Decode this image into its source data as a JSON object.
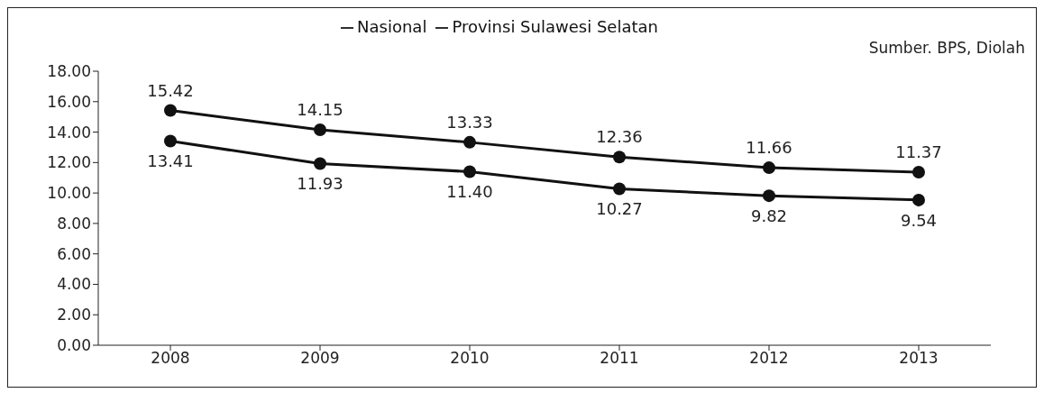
{
  "chart_data": {
    "type": "line",
    "categories": [
      "2008",
      "2009",
      "2010",
      "2011",
      "2012",
      "2013"
    ],
    "series": [
      {
        "name": "Nasional",
        "color": "#111111",
        "values": [
          15.42,
          14.15,
          13.33,
          12.36,
          11.66,
          11.37
        ],
        "value_labels": [
          "15.42",
          "14.15",
          "13.33",
          "12.36",
          "11.66",
          "11.37"
        ]
      },
      {
        "name": "Provinsi Sulawesi Selatan",
        "color": "#111111",
        "values": [
          13.41,
          11.93,
          11.4,
          10.27,
          9.82,
          9.54
        ],
        "value_labels": [
          "13.41",
          "11.93",
          "11.40",
          "10.27",
          "9.82",
          "9.54"
        ]
      }
    ],
    "ylim": [
      0,
      18
    ],
    "yticks": [
      {
        "value": 0,
        "label": "0.00"
      },
      {
        "value": 2,
        "label": "2.00"
      },
      {
        "value": 4,
        "label": "4.00"
      },
      {
        "value": 6,
        "label": "6.00"
      },
      {
        "value": 8,
        "label": "8.00"
      },
      {
        "value": 10,
        "label": "10.00"
      },
      {
        "value": 12,
        "label": "12.00"
      },
      {
        "value": 14,
        "label": "14.00"
      },
      {
        "value": 16,
        "label": "16.00"
      },
      {
        "value": 18,
        "label": "18.00"
      }
    ],
    "annotations": [
      "Sumber. BPS, Diolah"
    ],
    "legend": "top",
    "marker": "circle",
    "line_style": "solid",
    "grid": false
  }
}
